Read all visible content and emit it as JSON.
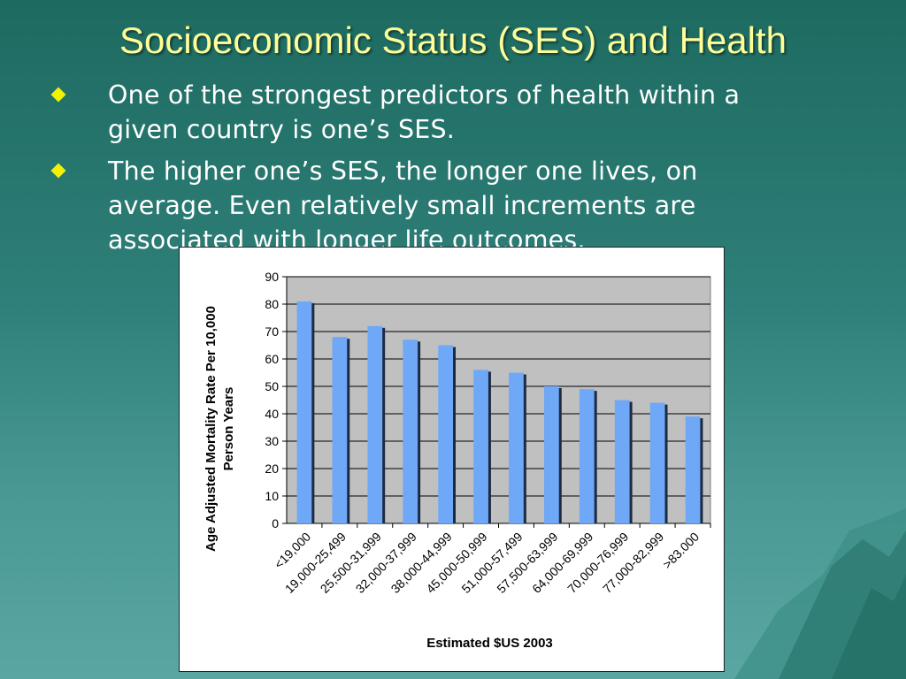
{
  "slide": {
    "title": "Socioeconomic Status (SES) and Health",
    "bullets": [
      {
        "lines": [
          "One of the strongest predictors of health within a",
          "given country is one’s SES."
        ]
      },
      {
        "lines": [
          "The higher one’s SES, the longer one lives, on",
          "average.  Even relatively small increments are",
          "associated with longer life outcomes."
        ]
      }
    ]
  },
  "colors": {
    "title": "#ffff99",
    "bullet_marker": "#f3f000",
    "bar": "#6ea8f7",
    "bar_shadow": "#1c2a40",
    "plot_bg": "#c0c0c0"
  },
  "icons": {
    "bullet": "diamond-bullet-icon",
    "decoration": "mountain-decoration"
  },
  "chart_data": {
    "type": "bar",
    "categories": [
      "<19,000",
      "19,000-25,499",
      "25,500-31,999",
      "32,000-37,999",
      "38,000-44,999",
      "45,000-50,999",
      "51,000-57,499",
      "57,500-63,999",
      "64,000-69,999",
      "70,000-76,999",
      "77,000-82,999",
      ">83.000"
    ],
    "values": [
      81,
      68,
      72,
      67,
      65,
      56,
      55,
      50,
      49,
      45,
      44,
      39
    ],
    "ylabel_lines": [
      "Age Adjusted Mortality Rate Per 10,000",
      "Person Years"
    ],
    "xlabel": "Estimated $US 2003",
    "ylim": [
      0,
      90
    ],
    "yticks": [
      0,
      10,
      20,
      30,
      40,
      50,
      60,
      70,
      80,
      90
    ],
    "grid": true,
    "legend": "none"
  }
}
